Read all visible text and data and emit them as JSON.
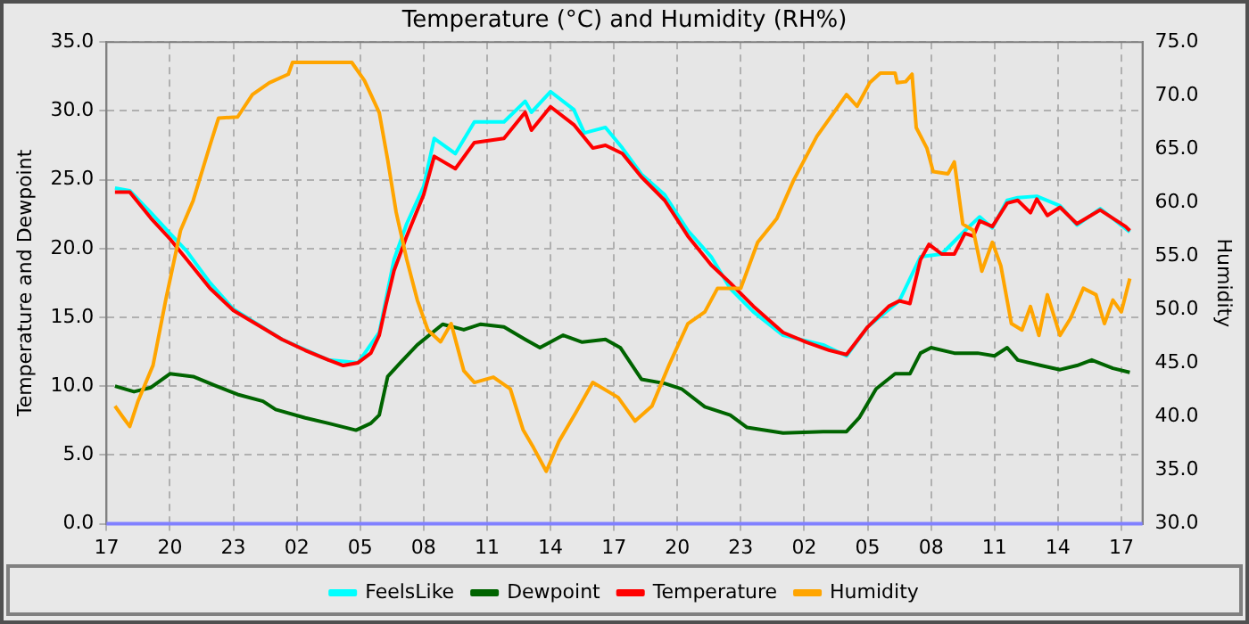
{
  "chart_data": {
    "type": "line",
    "title": "Temperature (°C) and Humidity (RH%)",
    "ylabel": "Temperature and Dewpoint",
    "y2label": "Humidity",
    "xlim": [
      "--01-01T17:00",
      "--01-03T18:00"
    ],
    "xticks": [
      {
        "value": "--01-01T17:00",
        "label": "17"
      },
      {
        "value": "--01-01T20:00",
        "label": "20"
      },
      {
        "value": "--01-01T23:00",
        "label": "23"
      },
      {
        "value": "--01-02T02:00",
        "label": "02"
      },
      {
        "value": "--01-02T05:00",
        "label": "05"
      },
      {
        "value": "--01-02T08:00",
        "label": "08"
      },
      {
        "value": "--01-02T11:00",
        "label": "11"
      },
      {
        "value": "--01-02T14:00",
        "label": "14"
      },
      {
        "value": "--01-02T17:00",
        "label": "17"
      },
      {
        "value": "--01-02T20:00",
        "label": "20"
      },
      {
        "value": "--01-02T23:00",
        "label": "23"
      },
      {
        "value": "--01-03T02:00",
        "label": "02"
      },
      {
        "value": "--01-03T05:00",
        "label": "05"
      },
      {
        "value": "--01-03T08:00",
        "label": "08"
      },
      {
        "value": "--01-03T11:00",
        "label": "11"
      },
      {
        "value": "--01-03T14:00",
        "label": "14"
      },
      {
        "value": "--01-03T17:00",
        "label": "17"
      }
    ],
    "ylim": [
      0,
      35
    ],
    "yticks": [
      {
        "value": 0,
        "label": "0.0"
      },
      {
        "value": 5,
        "label": "5.0"
      },
      {
        "value": 10,
        "label": "10.0"
      },
      {
        "value": 15,
        "label": "15.0"
      },
      {
        "value": 20,
        "label": "20.0"
      },
      {
        "value": 25,
        "label": "25.0"
      },
      {
        "value": 30,
        "label": "30.0"
      },
      {
        "value": 35,
        "label": "35.0"
      }
    ],
    "y2lim": [
      30,
      75
    ],
    "y2ticks": [
      {
        "value": 30,
        "label": "30.0"
      },
      {
        "value": 35,
        "label": "35.0"
      },
      {
        "value": 40,
        "label": "40.0"
      },
      {
        "value": 45,
        "label": "45.0"
      },
      {
        "value": 50,
        "label": "50.0"
      },
      {
        "value": 55,
        "label": "55.0"
      },
      {
        "value": 60,
        "label": "60.0"
      },
      {
        "value": 65,
        "label": "65.0"
      },
      {
        "value": 70,
        "label": "70.0"
      },
      {
        "value": 75,
        "label": "75.0"
      }
    ],
    "grid": true,
    "legend": "bottom",
    "marker": "none",
    "line_style": "solid",
    "series": [
      {
        "name": "FeelsLike",
        "color": "#00ffff",
        "x": [
          "--01-01T17:24",
          "--01-01T18:06",
          "--01-01T19:06",
          "--01-01T20:00",
          "--01-01T20:48",
          "--01-01T21:54",
          "--01-01T23:00",
          "--01-02T01:18",
          "--01-02T03:30",
          "--01-02T04:54",
          "--01-02T05:54",
          "--01-02T06:36",
          "--01-02T07:12",
          "--01-02T08:00",
          "--01-02T08:30",
          "--01-02T09:30",
          "--01-02T10:24",
          "--01-02T11:48",
          "--01-02T12:48",
          "--01-02T13:06",
          "--01-02T14:00",
          "--01-02T15:06",
          "--01-02T15:36",
          "--01-02T16:36",
          "--01-02T17:24",
          "--01-02T18:18",
          "--01-02T19:24",
          "--01-02T20:30",
          "--01-02T21:36",
          "--01-02T22:30",
          "--01-02T23:36",
          "--01-03T01:00",
          "--01-03T02:54",
          "--01-03T04:00",
          "--01-03T05:00",
          "--01-03T06:30",
          "--01-03T07:30",
          "--01-03T08:30",
          "--01-03T09:36",
          "--01-03T10:18",
          "--01-03T10:54",
          "--01-03T11:36",
          "--01-03T12:06",
          "--01-03T13:00",
          "--01-03T14:06",
          "--01-03T14:54",
          "--01-03T16:00",
          "--01-03T17:24"
        ],
        "values": [
          24.4,
          24.2,
          22.6,
          21.1,
          19.8,
          17.5,
          15.6,
          13.4,
          11.9,
          11.7,
          13.9,
          19.2,
          21.8,
          24.5,
          28.0,
          26.9,
          29.2,
          29.2,
          30.7,
          29.9,
          31.4,
          30.1,
          28.4,
          28.8,
          27.3,
          25.4,
          23.9,
          21.3,
          19.4,
          17.1,
          15.4,
          13.7,
          13.0,
          12.2,
          14.3,
          16.2,
          19.4,
          19.6,
          21.3,
          22.3,
          21.5,
          23.5,
          23.7,
          23.8,
          23.1,
          21.7,
          22.9,
          21.2
        ]
      },
      {
        "name": "Dewpoint",
        "color": "#006400",
        "x": [
          "--01-01T17:24",
          "--01-01T18:18",
          "--01-01T19:06",
          "--01-01T20:00",
          "--01-01T21:06",
          "--01-01T22:12",
          "--01-01T23:12",
          "--01-02T00:24",
          "--01-02T01:00",
          "--01-02T02:24",
          "--01-02T03:30",
          "--01-02T04:48",
          "--01-02T05:30",
          "--01-02T05:54",
          "--01-02T06:18",
          "--01-02T06:54",
          "--01-02T07:42",
          "--01-02T08:54",
          "--01-02T09:54",
          "--01-02T10:42",
          "--01-02T11:48",
          "--01-02T12:48",
          "--01-02T13:30",
          "--01-02T14:36",
          "--01-02T15:30",
          "--01-02T16:36",
          "--01-02T17:18",
          "--01-02T18:18",
          "--01-02T19:24",
          "--01-02T20:12",
          "--01-02T21:18",
          "--01-02T22:30",
          "--01-02T23:18",
          "--01-03T01:00",
          "--01-03T02:54",
          "--01-03T04:00",
          "--01-03T04:36",
          "--01-03T05:24",
          "--01-03T06:18",
          "--01-03T07:00",
          "--01-03T07:30",
          "--01-03T08:00",
          "--01-03T09:06",
          "--01-03T10:12",
          "--01-03T11:00",
          "--01-03T11:36",
          "--01-03T12:06",
          "--01-03T13:12",
          "--01-03T14:06",
          "--01-03T14:54",
          "--01-03T15:36",
          "--01-03T16:36",
          "--01-03T17:24"
        ],
        "values": [
          10.0,
          9.6,
          9.9,
          10.9,
          10.7,
          10.0,
          9.4,
          8.9,
          8.3,
          7.7,
          7.3,
          6.8,
          7.3,
          7.9,
          10.7,
          11.7,
          13.0,
          14.5,
          14.1,
          14.5,
          14.3,
          13.4,
          12.8,
          13.7,
          13.2,
          13.4,
          12.8,
          10.5,
          10.2,
          9.8,
          8.5,
          7.9,
          7.0,
          6.6,
          6.7,
          6.7,
          7.7,
          9.8,
          10.9,
          10.9,
          12.4,
          12.8,
          12.4,
          12.4,
          12.2,
          12.8,
          11.9,
          11.5,
          11.2,
          11.5,
          11.9,
          11.3,
          11.0
        ]
      },
      {
        "name": "Temperature",
        "color": "#ff0000",
        "x": [
          "--01-01T17:24",
          "--01-01T18:06",
          "--01-01T19:06",
          "--01-01T20:00",
          "--01-01T20:48",
          "--01-01T21:54",
          "--01-01T23:00",
          "--01-02T00:06",
          "--01-02T01:18",
          "--01-02T02:24",
          "--01-02T03:30",
          "--01-02T04:12",
          "--01-02T04:54",
          "--01-02T05:30",
          "--01-02T05:54",
          "--01-02T06:12",
          "--01-02T06:36",
          "--01-02T07:12",
          "--01-02T08:00",
          "--01-02T08:30",
          "--01-02T09:30",
          "--01-02T10:24",
          "--01-02T11:48",
          "--01-02T12:48",
          "--01-02T13:06",
          "--01-02T14:00",
          "--01-02T15:06",
          "--01-02T16:00",
          "--01-02T16:36",
          "--01-02T17:24",
          "--01-02T18:18",
          "--01-02T19:24",
          "--01-02T20:30",
          "--01-02T21:36",
          "--01-02T22:30",
          "--01-02T23:36",
          "--01-03T01:00",
          "--01-03T02:06",
          "--01-03T03:12",
          "--01-03T04:00",
          "--01-03T05:00",
          "--01-03T06:00",
          "--01-03T06:30",
          "--01-03T07:00",
          "--01-03T07:30",
          "--01-03T07:54",
          "--01-03T08:30",
          "--01-03T09:06",
          "--01-03T09:36",
          "--01-03T10:00",
          "--01-03T10:18",
          "--01-03T10:54",
          "--01-03T11:36",
          "--01-03T12:06",
          "--01-03T12:42",
          "--01-03T13:00",
          "--01-03T13:30",
          "--01-03T14:06",
          "--01-03T14:54",
          "--01-03T16:00",
          "--01-03T16:36",
          "--01-03T17:12",
          "--01-03T17:24"
        ],
        "values": [
          24.1,
          24.1,
          22.2,
          20.7,
          19.2,
          17.1,
          15.5,
          14.5,
          13.4,
          12.6,
          11.9,
          11.5,
          11.7,
          12.4,
          13.7,
          15.8,
          18.4,
          20.9,
          23.9,
          26.7,
          25.8,
          27.7,
          28.0,
          29.9,
          28.6,
          30.3,
          29.0,
          27.3,
          27.5,
          26.9,
          25.2,
          23.5,
          20.9,
          18.8,
          17.5,
          15.8,
          13.9,
          13.2,
          12.6,
          12.3,
          14.3,
          15.8,
          16.2,
          16.0,
          19.2,
          20.3,
          19.6,
          19.6,
          21.1,
          20.9,
          22.0,
          21.6,
          23.3,
          23.5,
          22.6,
          23.6,
          22.4,
          23.0,
          21.8,
          22.8,
          22.2,
          21.6,
          21.3
        ]
      },
      {
        "name": "Humidity",
        "color": "#ffa500",
        "axis": "y2",
        "x": [
          "--01-01T17:24",
          "--01-01T17:48",
          "--01-01T18:06",
          "--01-01T18:30",
          "--01-01T19:12",
          "--01-01T19:48",
          "--01-01T20:30",
          "--01-01T21:06",
          "--01-01T21:54",
          "--01-01T22:18",
          "--01-01T23:12",
          "--01-01T23:54",
          "--01-02T00:42",
          "--01-02T01:36",
          "--01-02T01:48",
          "--01-02T04:36",
          "--01-02T05:12",
          "--01-02T05:54",
          "--01-02T06:18",
          "--01-02T06:42",
          "--01-02T07:12",
          "--01-02T07:42",
          "--01-02T08:12",
          "--01-02T08:48",
          "--01-02T09:18",
          "--01-02T09:54",
          "--01-02T10:24",
          "--01-02T11:18",
          "--01-02T12:06",
          "--01-02T12:42",
          "--01-02T13:12",
          "--01-02T13:48",
          "--01-02T14:24",
          "--01-02T15:12",
          "--01-02T16:00",
          "--01-02T17:12",
          "--01-02T18:00",
          "--01-02T18:48",
          "--01-02T19:36",
          "--01-02T20:30",
          "--01-02T21:18",
          "--01-02T21:54",
          "--01-02T23:00",
          "--01-02T23:48",
          "--01-03T00:42",
          "--01-03T01:30",
          "--01-03T02:36",
          "--01-03T03:30",
          "--01-03T04:00",
          "--01-03T04:30",
          "--01-03T05:06",
          "--01-03T05:36",
          "--01-03T06:18",
          "--01-03T06:24",
          "--01-03T06:48",
          "--01-03T07:06",
          "--01-03T07:18",
          "--01-03T07:48",
          "--01-03T08:06",
          "--01-03T08:48",
          "--01-03T09:06",
          "--01-03T09:30",
          "--01-03T10:00",
          "--01-03T10:24",
          "--01-03T10:54",
          "--01-03T11:18",
          "--01-03T11:48",
          "--01-03T12:18",
          "--01-03T12:42",
          "--01-03T13:06",
          "--01-03T13:30",
          "--01-03T14:06",
          "--01-03T14:36",
          "--01-03T15:12",
          "--01-03T15:48",
          "--01-03T16:12",
          "--01-03T16:36",
          "--01-03T17:00",
          "--01-03T17:24"
        ],
        "values": [
          41.0,
          39.9,
          39.1,
          41.5,
          44.8,
          50.9,
          57.4,
          60.2,
          65.4,
          67.9,
          68.0,
          70.1,
          71.2,
          72.0,
          73.1,
          73.1,
          71.4,
          68.4,
          64.0,
          59.1,
          54.7,
          50.9,
          48.1,
          47.0,
          48.7,
          44.3,
          43.2,
          43.7,
          42.6,
          38.8,
          37.1,
          34.9,
          37.7,
          40.4,
          43.2,
          41.8,
          39.6,
          41.0,
          44.8,
          48.7,
          49.8,
          52.0,
          52.0,
          56.3,
          58.5,
          62.1,
          66.2,
          68.7,
          70.1,
          69.0,
          71.2,
          72.1,
          72.1,
          71.2,
          71.3,
          72.0,
          67.0,
          65.1,
          62.9,
          62.7,
          63.8,
          58.0,
          57.4,
          53.6,
          56.3,
          54.1,
          48.7,
          48.1,
          50.3,
          47.6,
          51.4,
          47.6,
          49.2,
          52.0,
          51.4,
          48.7,
          50.9,
          49.8,
          52.9
        ]
      }
    ]
  }
}
